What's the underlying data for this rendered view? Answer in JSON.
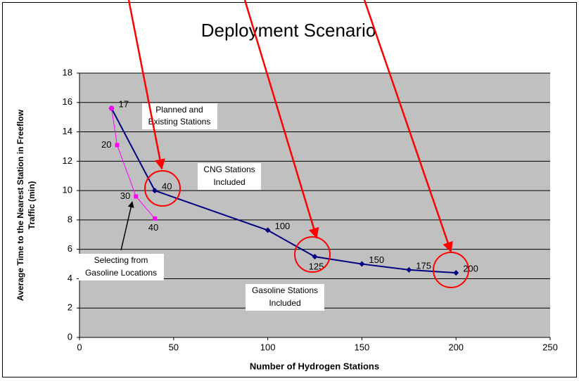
{
  "chart_data": {
    "type": "line",
    "title": "Deployment Scenario",
    "x_label": "Number of Hydrogen Stations",
    "y_label": [
      "Average Time to the Nearest Station in Freeflow",
      "Traffic (min)"
    ],
    "xlim": [
      0,
      250
    ],
    "xticks": [
      0,
      50,
      100,
      150,
      200,
      250
    ],
    "ylim": [
      0,
      18
    ],
    "yticks": [
      0,
      2,
      4,
      6,
      8,
      10,
      12,
      14,
      16,
      18
    ],
    "grid": true,
    "series": [
      {
        "color": "#000080",
        "x": [
          17,
          40,
          100,
          125,
          150,
          175,
          200
        ],
        "values": [
          15.6,
          10,
          7.3,
          5.5,
          5,
          4.6,
          4.4
        ]
      },
      {
        "color": "#ff00ff",
        "x": [
          17,
          20,
          30,
          40
        ],
        "values": [
          15.6,
          13.1,
          9.6,
          8.1
        ]
      }
    ],
    "annotations": [
      [
        "Planned and",
        "Existing Stations"
      ],
      [
        "CNG Stations",
        "Included"
      ],
      [
        "Gasoline Stations",
        "Included"
      ],
      [
        "Selecting from",
        "Gasoline Locations"
      ]
    ]
  }
}
